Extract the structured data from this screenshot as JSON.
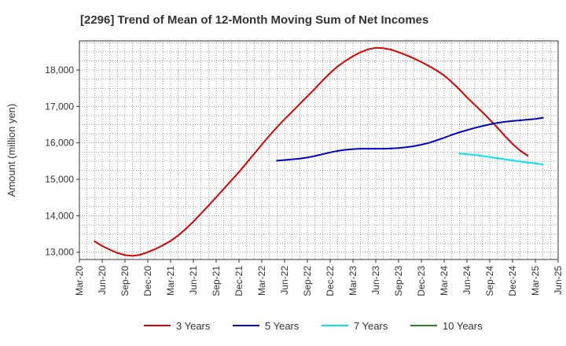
{
  "chart_data": {
    "type": "line",
    "title": "[2296]  Trend of Mean of 12-Month Moving Sum of Net Incomes",
    "xlabel": "",
    "ylabel": "Amount (million yen)",
    "ylim": [
      12800,
      18800
    ],
    "yticks": [
      13000,
      14000,
      15000,
      16000,
      17000,
      18000
    ],
    "ytick_labels": [
      "13,000",
      "14,000",
      "15,000",
      "16,000",
      "17,000",
      "18,000"
    ],
    "xticks": [
      "2020-03",
      "2020-06",
      "2020-09",
      "2020-12",
      "2021-03",
      "2021-06",
      "2021-09",
      "2021-12",
      "2022-03",
      "2022-06",
      "2022-09",
      "2022-12",
      "2023-03",
      "2023-06",
      "2023-09",
      "2023-12",
      "2024-03",
      "2024-06",
      "2024-09",
      "2024-12",
      "2025-03",
      "2025-06"
    ],
    "xtick_labels": [
      "Mar-20",
      "Jun-20",
      "Sep-20",
      "Dec-20",
      "Mar-21",
      "Jun-21",
      "Sep-21",
      "Dec-21",
      "Mar-22",
      "Jun-22",
      "Sep-22",
      "Dec-22",
      "Mar-23",
      "Jun-23",
      "Sep-23",
      "Dec-23",
      "Mar-24",
      "Jun-24",
      "Sep-24",
      "Dec-24",
      "Mar-25",
      "Jun-25"
    ],
    "grid": true,
    "legend_position": "bottom",
    "series": [
      {
        "name": "3 Years",
        "color": "#dd0000",
        "points": [
          [
            "2020-05",
            13300
          ],
          [
            "2020-06",
            13170
          ],
          [
            "2020-07",
            13070
          ],
          [
            "2020-08",
            12980
          ],
          [
            "2020-09",
            12920
          ],
          [
            "2020-10",
            12900
          ],
          [
            "2020-11",
            12930
          ],
          [
            "2020-12",
            13000
          ],
          [
            "2021-01",
            13090
          ],
          [
            "2021-02",
            13190
          ],
          [
            "2021-03",
            13310
          ],
          [
            "2021-04",
            13460
          ],
          [
            "2021-05",
            13640
          ],
          [
            "2021-06",
            13840
          ],
          [
            "2021-07",
            14060
          ],
          [
            "2021-08",
            14280
          ],
          [
            "2021-09",
            14510
          ],
          [
            "2021-10",
            14740
          ],
          [
            "2021-11",
            14970
          ],
          [
            "2021-12",
            15200
          ],
          [
            "2022-01",
            15450
          ],
          [
            "2022-02",
            15700
          ],
          [
            "2022-03",
            15950
          ],
          [
            "2022-04",
            16200
          ],
          [
            "2022-05",
            16430
          ],
          [
            "2022-06",
            16650
          ],
          [
            "2022-07",
            16860
          ],
          [
            "2022-08",
            17070
          ],
          [
            "2022-09",
            17280
          ],
          [
            "2022-10",
            17490
          ],
          [
            "2022-11",
            17710
          ],
          [
            "2022-12",
            17920
          ],
          [
            "2023-01",
            18100
          ],
          [
            "2023-02",
            18250
          ],
          [
            "2023-03",
            18380
          ],
          [
            "2023-04",
            18490
          ],
          [
            "2023-05",
            18570
          ],
          [
            "2023-06",
            18610
          ],
          [
            "2023-07",
            18600
          ],
          [
            "2023-08",
            18560
          ],
          [
            "2023-09",
            18490
          ],
          [
            "2023-10",
            18410
          ],
          [
            "2023-11",
            18320
          ],
          [
            "2023-12",
            18220
          ],
          [
            "2024-01",
            18110
          ],
          [
            "2024-02",
            17990
          ],
          [
            "2024-03",
            17850
          ],
          [
            "2024-04",
            17670
          ],
          [
            "2024-05",
            17470
          ],
          [
            "2024-06",
            17250
          ],
          [
            "2024-07",
            17050
          ],
          [
            "2024-08",
            16850
          ],
          [
            "2024-09",
            16640
          ],
          [
            "2024-10",
            16420
          ],
          [
            "2024-11",
            16190
          ],
          [
            "2024-12",
            15970
          ],
          [
            "2025-01",
            15790
          ],
          [
            "2025-02",
            15650
          ]
        ]
      },
      {
        "name": "5 Years",
        "color": "#0000cc",
        "points": [
          [
            "2022-05",
            15510
          ],
          [
            "2022-06",
            15530
          ],
          [
            "2022-07",
            15550
          ],
          [
            "2022-08",
            15570
          ],
          [
            "2022-09",
            15600
          ],
          [
            "2022-10",
            15640
          ],
          [
            "2022-11",
            15690
          ],
          [
            "2022-12",
            15740
          ],
          [
            "2023-01",
            15780
          ],
          [
            "2023-02",
            15810
          ],
          [
            "2023-03",
            15830
          ],
          [
            "2023-04",
            15840
          ],
          [
            "2023-05",
            15840
          ],
          [
            "2023-06",
            15840
          ],
          [
            "2023-07",
            15840
          ],
          [
            "2023-08",
            15850
          ],
          [
            "2023-09",
            15860
          ],
          [
            "2023-10",
            15880
          ],
          [
            "2023-11",
            15910
          ],
          [
            "2023-12",
            15950
          ],
          [
            "2024-01",
            16000
          ],
          [
            "2024-02",
            16070
          ],
          [
            "2024-03",
            16140
          ],
          [
            "2024-04",
            16220
          ],
          [
            "2024-05",
            16290
          ],
          [
            "2024-06",
            16350
          ],
          [
            "2024-07",
            16410
          ],
          [
            "2024-08",
            16460
          ],
          [
            "2024-09",
            16510
          ],
          [
            "2024-10",
            16550
          ],
          [
            "2024-11",
            16580
          ],
          [
            "2024-12",
            16600
          ],
          [
            "2025-01",
            16620
          ],
          [
            "2025-02",
            16640
          ],
          [
            "2025-03",
            16660
          ],
          [
            "2025-04",
            16690
          ]
        ]
      },
      {
        "name": "7 Years",
        "color": "#00e5ee",
        "points": [
          [
            "2024-05",
            15710
          ],
          [
            "2024-06",
            15690
          ],
          [
            "2024-07",
            15670
          ],
          [
            "2024-08",
            15640
          ],
          [
            "2024-09",
            15610
          ],
          [
            "2024-10",
            15580
          ],
          [
            "2024-11",
            15550
          ],
          [
            "2024-12",
            15520
          ],
          [
            "2025-01",
            15490
          ],
          [
            "2025-02",
            15460
          ],
          [
            "2025-03",
            15440
          ],
          [
            "2025-04",
            15410
          ]
        ]
      },
      {
        "name": "10 Years",
        "color": "#228b22",
        "points": []
      }
    ]
  }
}
